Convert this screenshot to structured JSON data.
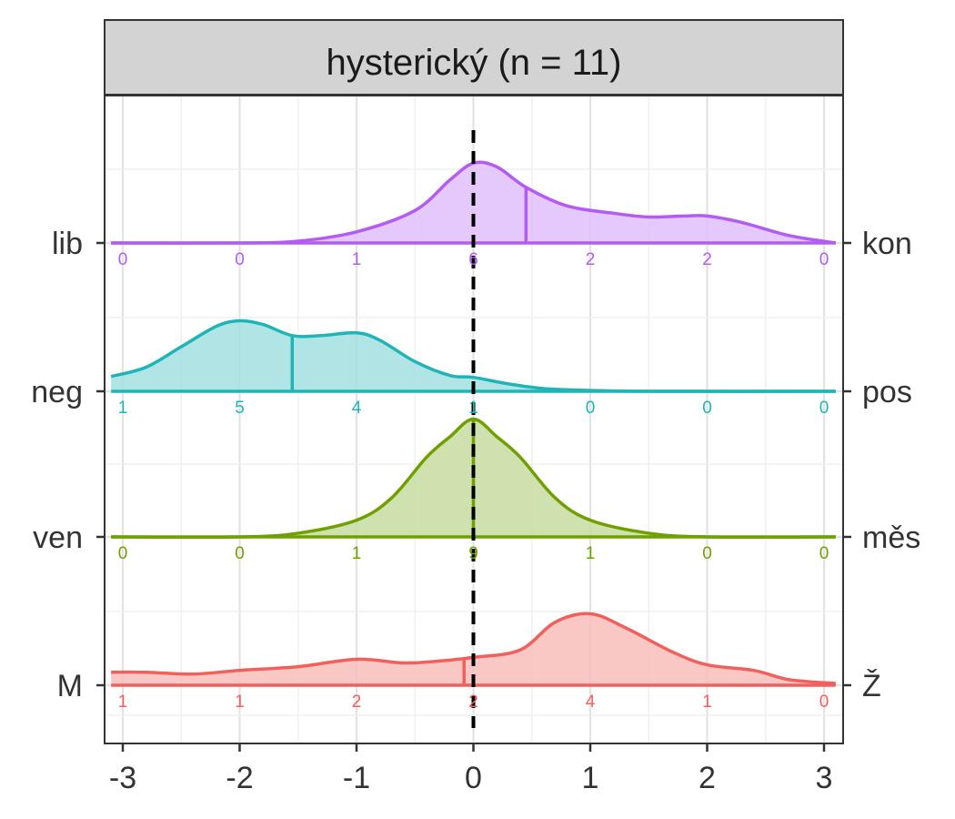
{
  "chart_data": {
    "type": "ridgeline",
    "title": "hysterický (n = 11)",
    "xlim": [
      -3.1,
      3.1
    ],
    "x_ticks": [
      "-3",
      "-2",
      "-1",
      "0",
      "1",
      "2",
      "3"
    ],
    "x_tick_values": [
      -3,
      -2,
      -1,
      0,
      1,
      2,
      3
    ],
    "reference_line_x": 0,
    "count_positions": [
      -3,
      -2,
      -1,
      0,
      1,
      2,
      3
    ],
    "grid": true,
    "series": [
      {
        "left_label": "lib",
        "right_label": "kon",
        "color": "#B35CF2",
        "fill": "#E0BEFB",
        "counts": [
          "0",
          "0",
          "1",
          "6",
          "2",
          "2",
          "0"
        ],
        "mean": 0.45,
        "density": [
          [
            -3.1,
            0.0
          ],
          [
            -2.0,
            0.0
          ],
          [
            -1.5,
            0.02
          ],
          [
            -1.0,
            0.12
          ],
          [
            -0.5,
            0.35
          ],
          [
            -0.2,
            0.68
          ],
          [
            0.0,
            0.86
          ],
          [
            0.2,
            0.82
          ],
          [
            0.45,
            0.6
          ],
          [
            0.8,
            0.4
          ],
          [
            1.2,
            0.32
          ],
          [
            1.5,
            0.28
          ],
          [
            1.8,
            0.29
          ],
          [
            2.0,
            0.29
          ],
          [
            2.3,
            0.22
          ],
          [
            2.7,
            0.08
          ],
          [
            3.1,
            0.0
          ]
        ]
      },
      {
        "left_label": "neg",
        "right_label": "pos",
        "color": "#1FB5B8",
        "fill": "#A3E0E1",
        "counts": [
          "1",
          "5",
          "4",
          "1",
          "0",
          "0",
          "0"
        ],
        "mean": -1.55,
        "density": [
          [
            -3.1,
            0.16
          ],
          [
            -2.8,
            0.26
          ],
          [
            -2.5,
            0.48
          ],
          [
            -2.2,
            0.7
          ],
          [
            -2.0,
            0.76
          ],
          [
            -1.8,
            0.72
          ],
          [
            -1.55,
            0.6
          ],
          [
            -1.3,
            0.6
          ],
          [
            -1.0,
            0.63
          ],
          [
            -0.8,
            0.55
          ],
          [
            -0.5,
            0.32
          ],
          [
            -0.2,
            0.17
          ],
          [
            0.0,
            0.15
          ],
          [
            0.3,
            0.08
          ],
          [
            0.6,
            0.03
          ],
          [
            1.0,
            0.01
          ],
          [
            1.5,
            0.0
          ],
          [
            3.1,
            0.0
          ]
        ]
      },
      {
        "left_label": "ven",
        "right_label": "měs",
        "color": "#6FA000",
        "fill": "#C7DCA0",
        "counts": [
          "0",
          "0",
          "1",
          "9",
          "1",
          "0",
          "0"
        ],
        "mean": 0.0,
        "density": [
          [
            -3.1,
            0.0
          ],
          [
            -2.0,
            0.0
          ],
          [
            -1.5,
            0.04
          ],
          [
            -1.0,
            0.18
          ],
          [
            -0.7,
            0.42
          ],
          [
            -0.4,
            0.86
          ],
          [
            -0.2,
            1.08
          ],
          [
            0.0,
            1.27
          ],
          [
            0.2,
            1.08
          ],
          [
            0.4,
            0.86
          ],
          [
            0.7,
            0.42
          ],
          [
            1.0,
            0.18
          ],
          [
            1.5,
            0.04
          ],
          [
            2.0,
            0.0
          ],
          [
            3.1,
            0.0
          ]
        ]
      },
      {
        "left_label": "M",
        "right_label": "Ž",
        "color": "#F0615D",
        "fill": "#F8BDBA",
        "counts": [
          "1",
          "1",
          "2",
          "2",
          "4",
          "1",
          "0"
        ],
        "mean": -0.08,
        "density": [
          [
            -3.1,
            0.14
          ],
          [
            -2.8,
            0.14
          ],
          [
            -2.4,
            0.12
          ],
          [
            -2.0,
            0.16
          ],
          [
            -1.5,
            0.2
          ],
          [
            -1.0,
            0.28
          ],
          [
            -0.6,
            0.24
          ],
          [
            -0.3,
            0.26
          ],
          [
            0.0,
            0.3
          ],
          [
            0.4,
            0.38
          ],
          [
            0.7,
            0.68
          ],
          [
            1.0,
            0.77
          ],
          [
            1.3,
            0.62
          ],
          [
            1.7,
            0.36
          ],
          [
            2.0,
            0.22
          ],
          [
            2.4,
            0.16
          ],
          [
            2.7,
            0.06
          ],
          [
            3.1,
            0.02
          ]
        ]
      }
    ]
  }
}
